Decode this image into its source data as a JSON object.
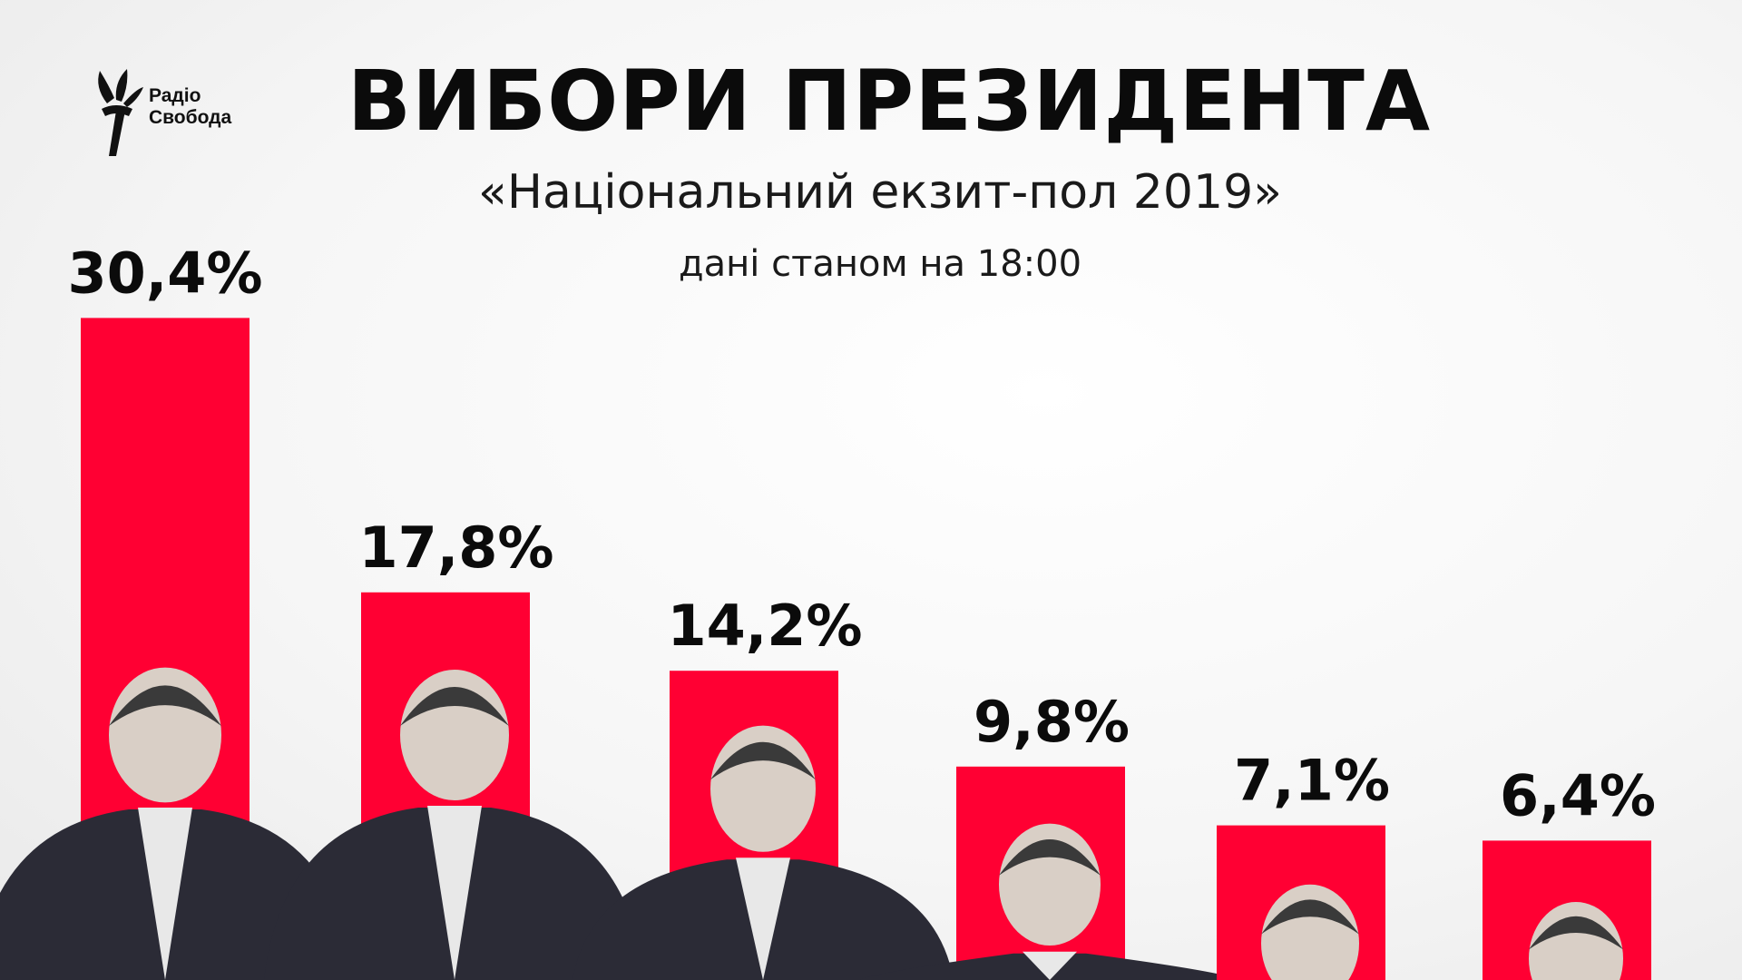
{
  "header": {
    "logo_line1": "Радіо",
    "logo_line2": "Свобода",
    "title": "ВИБОРИ ПРЕЗИДЕНТА",
    "subtitle": "«Національний екзит-пол 2019»",
    "note": "дані станом на 18:00"
  },
  "colors": {
    "bar": "#ff0033",
    "text": "#0b0b0b"
  },
  "chart_data": {
    "type": "bar",
    "categories": [
      "",
      "",
      "",
      "",
      "",
      ""
    ],
    "values": [
      30.4,
      17.8,
      14.2,
      9.8,
      7.1,
      6.4
    ],
    "data_labels": [
      "30,4%",
      "17,8%",
      "14,2%",
      "9,8%",
      "7,1%",
      "6,4%"
    ],
    "title": "ВИБОРИ ПРЕЗИДЕНТА",
    "subtitle": "«Національний екзит-пол 2019»",
    "xlabel": "",
    "ylabel": "",
    "grid": false,
    "legend": "none"
  }
}
